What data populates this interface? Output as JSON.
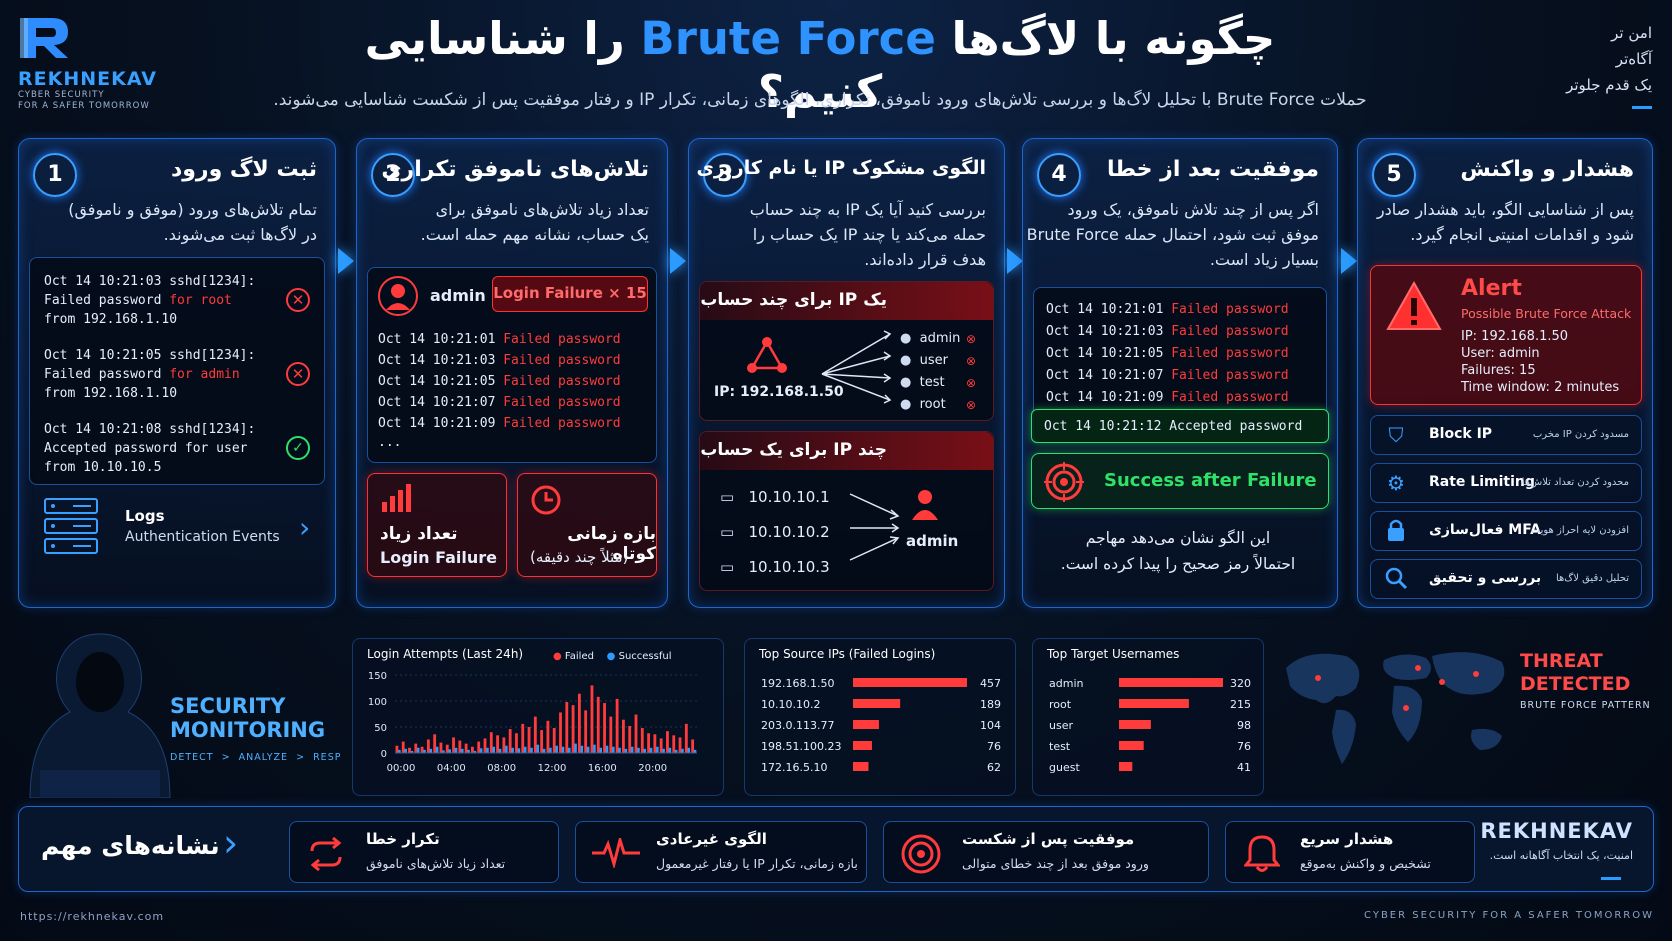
{
  "brand": {
    "name": "REKHNEKAV",
    "tagline_1": "CYBER SECURITY",
    "tagline_2": "FOR A SAFER TOMORROW"
  },
  "header": {
    "title_prefix": "چگونه با لاگ‌ها",
    "title_highlight": "Brute Force",
    "title_suffix": "را شناسایی کنیم؟",
    "subtitle": "حملات Brute Force با تحلیل لاگ‌ها و بررسی تلاش‌های ورود ناموفق، تکراری، الگوهای زمانی، تکرار IP و رفتار موفقیت پس از شکست شناسایی می‌شوند.",
    "slogan": [
      "امن تر",
      "آگاه‌تر",
      "یک قدم جلوتر"
    ]
  },
  "steps": [
    {
      "num": "1",
      "title": "ثبت لاگ ورود",
      "desc": [
        "تمام تلاش‌های ورود (موفق و ناموفق)",
        "در لاگ‌ها ثبت می‌شوند."
      ],
      "logs": [
        {
          "l1": "Oct 14 10:21:03 sshd[1234]:",
          "l2a": "Failed password",
          "l2b": "for root",
          "l3": "from 192.168.1.10",
          "status": "fail"
        },
        {
          "l1": "Oct 14 10:21:05 sshd[1234]:",
          "l2a": "Failed password",
          "l2b": "for admin",
          "l3": "from 192.168.1.10",
          "status": "fail"
        },
        {
          "l1": "Oct 14 10:21:08 sshd[1234]:",
          "l2a": "Accepted password for user",
          "l2b": "",
          "l3": "from 10.10.10.5",
          "status": "ok"
        }
      ],
      "footer_title": "Logs",
      "footer_sub": "Authentication Events"
    },
    {
      "num": "2",
      "title": "تلاش‌های ناموفق تکراری",
      "desc": [
        "تعداد زیاد تلاش‌های ناموفق برای",
        "یک حساب، نشانه مهم حمله است."
      ],
      "user": "admin",
      "badge_label": "Login Failure",
      "badge_count": "× 15",
      "logs": [
        {
          "time": "Oct 14 10:21:01",
          "msg": "Failed password"
        },
        {
          "time": "Oct 14 10:21:03",
          "msg": "Failed password"
        },
        {
          "time": "Oct 14 10:21:05",
          "msg": "Failed password"
        },
        {
          "time": "Oct 14 10:21:07",
          "msg": "Failed password"
        },
        {
          "time": "Oct 14 10:21:09",
          "msg": "Failed password"
        }
      ],
      "ellipsis": "...",
      "box1_title": "تعداد زیاد",
      "box1_sub": "Login Failure",
      "box2_title": "بازه زمانی کوتاه",
      "box2_sub": "(مثلاً چند دقیقه)"
    },
    {
      "num": "3",
      "title": "الگوی مشکوک IP یا نام کاربری",
      "desc": [
        "بررسی کنید آیا یک IP به چند حساب",
        "حمله می‌کند یا چند IP یک حساب را",
        "هدف قرار داده‌اند."
      ],
      "box1_title": "یک IP برای چند حساب",
      "box1_ip": "IP: 192.168.1.50",
      "box1_users": [
        "admin",
        "user",
        "test",
        "root"
      ],
      "box2_title": "چند IP برای یک حساب",
      "box2_ips": [
        "10.10.10.1",
        "10.10.10.2",
        "10.10.10.3"
      ],
      "box2_user": "admin"
    },
    {
      "num": "4",
      "title": "موفقیت بعد از خطا",
      "desc": [
        "اگر پس از چند تلاش ناموفق، یک ورود",
        "موفق ثبت شود، احتمال حمله Brute Force",
        "بسیار زیاد است."
      ],
      "logs": [
        {
          "time": "Oct 14 10:21:01",
          "msg": "Failed password"
        },
        {
          "time": "Oct 14 10:21:03",
          "msg": "Failed password"
        },
        {
          "time": "Oct 14 10:21:05",
          "msg": "Failed password"
        },
        {
          "time": "Oct 14 10:21:07",
          "msg": "Failed password"
        },
        {
          "time": "Oct 14 10:21:09",
          "msg": "Failed password"
        }
      ],
      "accepted_time": "Oct 14 10:21:12",
      "accepted_msg": "Accepted password",
      "success_label": "Success after Failure",
      "note": [
        "این الگو نشان می‌دهد مهاجم",
        "احتمالاً رمز صحیح را پیدا کرده است."
      ]
    },
    {
      "num": "5",
      "title": "هشدار و واکنش",
      "desc": [
        "پس از شناسایی الگو، باید هشدار صادر",
        "شود و اقدامات امنیتی انجام گیرد."
      ],
      "alert_title": "Alert",
      "alert_sub": "Possible Brute Force Attack",
      "alert_lines": [
        "IP: 192.168.1.50",
        "User: admin",
        "Failures: 15",
        "Time window: 2 minutes"
      ],
      "actions": [
        {
          "icon": "shield-icon",
          "label": "Block IP",
          "sub": "مسدود کردن IP مخرب"
        },
        {
          "icon": "gear-icon",
          "label": "Rate Limiting",
          "sub": "محدود کردن تعداد تلاش‌ها"
        },
        {
          "icon": "lock-icon",
          "label": "فعال‌سازی MFA",
          "sub": "افزودن لایه احراز هویت"
        },
        {
          "icon": "search-icon",
          "label": "بررسی و تحقیق",
          "sub": "تحلیل دقیق لاگ‌ها"
        }
      ]
    }
  ],
  "monitoring": {
    "title_1": "SECURITY",
    "title_2": "MONITORING",
    "sub": "DETECT  >  ANALYZE  >  RESPOND"
  },
  "threat": {
    "title_1": "THREAT",
    "title_2": "DETECTED",
    "sub": "BRUTE FORCE PATTERN"
  },
  "chart_data": [
    {
      "type": "bar",
      "title": "Login Attempts (Last 24h)",
      "legend": [
        "Failed",
        "Successful"
      ],
      "ylim": [
        0,
        150
      ],
      "yticks": [
        0,
        50,
        100,
        150
      ],
      "xticks": [
        "00:00",
        "04:00",
        "08:00",
        "12:00",
        "16:00",
        "20:00"
      ],
      "series": [
        {
          "name": "Failed",
          "color": "#ff3b3b",
          "values": [
            14,
            22,
            10,
            18,
            12,
            26,
            36,
            20,
            16,
            30,
            24,
            18,
            12,
            22,
            28,
            40,
            34,
            30,
            46,
            38,
            56,
            50,
            70,
            44,
            62,
            48,
            78,
            98,
            92,
            114,
            82,
            130,
            108,
            96,
            70,
            104,
            64,
            52,
            74,
            48,
            38,
            36,
            28,
            42,
            34,
            30,
            56,
            26
          ]
        },
        {
          "name": "Successful",
          "color": "#2b9bff",
          "values": [
            6,
            8,
            4,
            10,
            6,
            8,
            12,
            5,
            7,
            10,
            8,
            6,
            4,
            9,
            10,
            12,
            8,
            14,
            10,
            9,
            12,
            10,
            16,
            8,
            10,
            14,
            12,
            10,
            18,
            14,
            12,
            16,
            10,
            14,
            12,
            10,
            8,
            12,
            10,
            8,
            10,
            12,
            8,
            10,
            6,
            8,
            10,
            6
          ]
        }
      ]
    },
    {
      "type": "bar",
      "title": "Top Source IPs (Failed Logins)",
      "categories": [
        "192.168.1.50",
        "10.10.10.2",
        "203.0.113.77",
        "198.51.100.23",
        "172.16.5.10"
      ],
      "values": [
        457,
        189,
        104,
        76,
        62
      ]
    },
    {
      "type": "bar",
      "title": "Top Target Usernames",
      "categories": [
        "admin",
        "root",
        "user",
        "test",
        "guest"
      ],
      "values": [
        320,
        215,
        98,
        76,
        41
      ]
    }
  ],
  "indicators": {
    "heading": "نشانه‌های مهم",
    "items": [
      {
        "icon": "repeat-icon",
        "title": "تکرار خطا",
        "desc": "تعداد زیاد تلاش‌های ناموفق"
      },
      {
        "icon": "pulse-icon",
        "title": "الگوی غیرعادی",
        "desc": "بازه زمانی، تکرار IP یا رفتار غیرمعمول"
      },
      {
        "icon": "target-icon",
        "title": "موفقیت پس از شکست",
        "desc": "ورود موفق بعد از چند خطای متوالی"
      },
      {
        "icon": "bell-icon",
        "title": "هشدار سریع",
        "desc": "تشخیص و واکنش به‌موقع"
      }
    ],
    "brand": "REKHNEKAV",
    "brand_sub": "امنیت، یک انتخاب آگاهانه است."
  },
  "footer": {
    "url": "https://rekhnekav.com",
    "tagline": "CYBER SECURITY FOR A SAFER TOMORROW"
  }
}
